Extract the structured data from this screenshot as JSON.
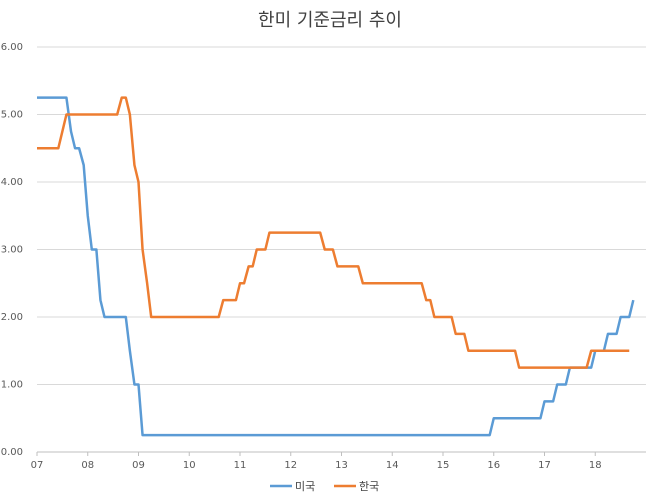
{
  "chart_data": {
    "type": "line",
    "title": "한미 기준금리 추이",
    "xlabel": "",
    "ylabel": "",
    "ylim": [
      0,
      6
    ],
    "y_ticks": [
      "0.00",
      "1.00",
      "2.00",
      "3.00",
      "4.00",
      "5.00",
      "6.00"
    ],
    "x_ticks": [
      {
        "label": "07",
        "x": 2007.0
      },
      {
        "label": "08",
        "x": 2008.0
      },
      {
        "label": "09",
        "x": 2009.0
      },
      {
        "label": "10",
        "x": 2010.0
      },
      {
        "label": "11",
        "x": 2011.0
      },
      {
        "label": "12",
        "x": 2012.0
      },
      {
        "label": "13",
        "x": 2013.0
      },
      {
        "label": "14",
        "x": 2014.0
      },
      {
        "label": "15",
        "x": 2015.0
      },
      {
        "label": "16",
        "x": 2016.0
      },
      {
        "label": "17",
        "x": 2017.0
      },
      {
        "label": "18",
        "x": 2018.0
      }
    ],
    "xlim": [
      2007.0,
      2019.0
    ],
    "grid": true,
    "legend_position": "bottom",
    "series": [
      {
        "name": "미국",
        "color": "#5B9BD5",
        "points": [
          [
            2007.0,
            5.25
          ],
          [
            2007.58,
            5.25
          ],
          [
            2007.67,
            4.75
          ],
          [
            2007.75,
            4.5
          ],
          [
            2007.83,
            4.5
          ],
          [
            2007.92,
            4.25
          ],
          [
            2008.0,
            3.5
          ],
          [
            2008.08,
            3.0
          ],
          [
            2008.17,
            3.0
          ],
          [
            2008.25,
            2.25
          ],
          [
            2008.33,
            2.0
          ],
          [
            2008.75,
            2.0
          ],
          [
            2008.83,
            1.5
          ],
          [
            2008.92,
            1.0
          ],
          [
            2009.0,
            1.0
          ],
          [
            2009.08,
            0.25
          ],
          [
            2015.92,
            0.25
          ],
          [
            2016.0,
            0.5
          ],
          [
            2016.92,
            0.5
          ],
          [
            2017.0,
            0.75
          ],
          [
            2017.17,
            0.75
          ],
          [
            2017.25,
            1.0
          ],
          [
            2017.42,
            1.0
          ],
          [
            2017.5,
            1.25
          ],
          [
            2017.92,
            1.25
          ],
          [
            2018.0,
            1.5
          ],
          [
            2018.17,
            1.5
          ],
          [
            2018.25,
            1.75
          ],
          [
            2018.42,
            1.75
          ],
          [
            2018.5,
            2.0
          ],
          [
            2018.67,
            2.0
          ],
          [
            2018.75,
            2.25
          ]
        ]
      },
      {
        "name": "한국",
        "color": "#ED7D31",
        "points": [
          [
            2007.0,
            4.5
          ],
          [
            2007.42,
            4.5
          ],
          [
            2007.58,
            5.0
          ],
          [
            2008.58,
            5.0
          ],
          [
            2008.67,
            5.25
          ],
          [
            2008.75,
            5.25
          ],
          [
            2008.83,
            5.0
          ],
          [
            2008.92,
            4.25
          ],
          [
            2009.0,
            4.0
          ],
          [
            2009.08,
            3.0
          ],
          [
            2009.17,
            2.5
          ],
          [
            2009.25,
            2.0
          ],
          [
            2010.58,
            2.0
          ],
          [
            2010.67,
            2.25
          ],
          [
            2010.92,
            2.25
          ],
          [
            2011.0,
            2.5
          ],
          [
            2011.08,
            2.5
          ],
          [
            2011.17,
            2.75
          ],
          [
            2011.25,
            2.75
          ],
          [
            2011.33,
            3.0
          ],
          [
            2011.5,
            3.0
          ],
          [
            2011.58,
            3.25
          ],
          [
            2012.58,
            3.25
          ],
          [
            2012.67,
            3.0
          ],
          [
            2012.83,
            3.0
          ],
          [
            2012.92,
            2.75
          ],
          [
            2013.33,
            2.75
          ],
          [
            2013.42,
            2.5
          ],
          [
            2014.58,
            2.5
          ],
          [
            2014.67,
            2.25
          ],
          [
            2014.75,
            2.25
          ],
          [
            2014.83,
            2.0
          ],
          [
            2015.17,
            2.0
          ],
          [
            2015.25,
            1.75
          ],
          [
            2015.42,
            1.75
          ],
          [
            2015.5,
            1.5
          ],
          [
            2016.42,
            1.5
          ],
          [
            2016.5,
            1.25
          ],
          [
            2017.83,
            1.25
          ],
          [
            2017.92,
            1.5
          ],
          [
            2018.67,
            1.5
          ]
        ]
      }
    ]
  }
}
